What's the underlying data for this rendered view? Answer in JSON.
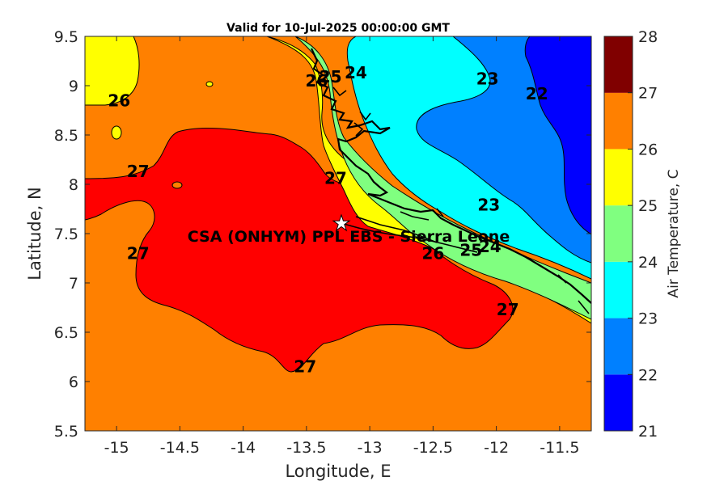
{
  "chart_data": {
    "type": "contour",
    "title": "Valid for 10-Jul-2025 00:00:00 GMT",
    "xlabel": "Longitude, E",
    "ylabel": "Latitude, N",
    "xlim": [
      -15.25,
      -11.25
    ],
    "ylim": [
      5.5,
      9.5
    ],
    "xticks": [
      -15,
      -14.5,
      -14,
      -13.5,
      -13,
      -12.5,
      -12,
      -11.5
    ],
    "yticks": [
      5.5,
      6,
      6.5,
      7,
      7.5,
      8,
      8.5,
      9,
      9.5
    ],
    "colorbar": {
      "label": "Air Temperature, C",
      "ticks": [
        21,
        22,
        23,
        24,
        25,
        26,
        27,
        28
      ],
      "levels": [
        {
          "from": 21,
          "to": 22,
          "color": "#0000ff"
        },
        {
          "from": 22,
          "to": 23,
          "color": "#0080ff"
        },
        {
          "from": 23,
          "to": 24,
          "color": "#00ffff"
        },
        {
          "from": 24,
          "to": 25,
          "color": "#80ff80"
        },
        {
          "from": 25,
          "to": 26,
          "color": "#ffff00"
        },
        {
          "from": 26,
          "to": 27,
          "color": "#ff8000"
        },
        {
          "from": 27,
          "to": 28,
          "color": "#ff0000"
        }
      ],
      "top_color": "#800000"
    },
    "contour_labels": [
      {
        "text": "26",
        "lon": -14.98,
        "lat": 8.85
      },
      {
        "text": "27",
        "lon": -14.83,
        "lat": 8.13
      },
      {
        "text": "27",
        "lon": -14.83,
        "lat": 7.3
      },
      {
        "text": "27",
        "lon": -13.51,
        "lat": 6.15
      },
      {
        "text": "27",
        "lon": -11.91,
        "lat": 6.73
      },
      {
        "text": "27",
        "lon": -13.27,
        "lat": 8.06
      },
      {
        "text": "26",
        "lon": -13.42,
        "lat": 9.05
      },
      {
        "text": "25",
        "lon": -13.31,
        "lat": 9.09
      },
      {
        "text": "24",
        "lon": -13.11,
        "lat": 9.13
      },
      {
        "text": "23",
        "lon": -12.07,
        "lat": 9.07
      },
      {
        "text": "22",
        "lon": -11.68,
        "lat": 8.92
      },
      {
        "text": "23",
        "lon": -12.06,
        "lat": 7.79
      },
      {
        "text": "26",
        "lon": -12.5,
        "lat": 7.3
      },
      {
        "text": "25",
        "lon": -12.2,
        "lat": 7.33
      },
      {
        "text": "24",
        "lon": -12.05,
        "lat": 7.37
      }
    ],
    "station": {
      "lon": -13.25,
      "lat": 7.6,
      "label": "CSA (ONHYM) PPL EBS  - Sierra Leone"
    }
  }
}
